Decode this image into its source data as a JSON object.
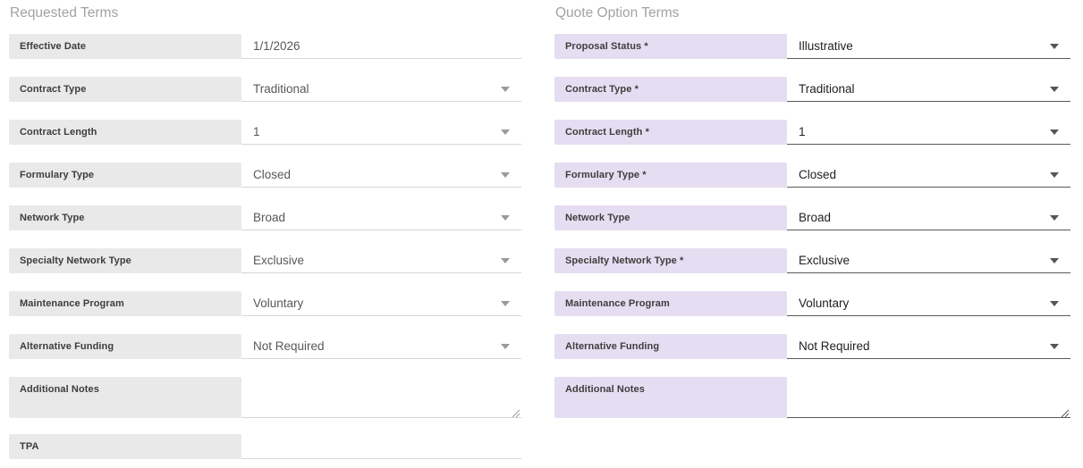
{
  "sections": {
    "left": {
      "title": "Requested Terms",
      "fields": [
        {
          "label": "Effective Date",
          "value": "1/1/2026",
          "type": "text"
        },
        {
          "label": "Contract Type",
          "value": "Traditional",
          "type": "select"
        },
        {
          "label": "Contract Length",
          "value": "1",
          "type": "select"
        },
        {
          "label": "Formulary Type",
          "value": "Closed",
          "type": "select"
        },
        {
          "label": "Network Type",
          "value": "Broad",
          "type": "select"
        },
        {
          "label": "Specialty Network Type",
          "value": "Exclusive",
          "type": "select"
        },
        {
          "label": "Maintenance Program",
          "value": "Voluntary",
          "type": "select"
        },
        {
          "label": "Alternative Funding",
          "value": "Not Required",
          "type": "select"
        },
        {
          "label": "Additional Notes",
          "value": "",
          "type": "textarea"
        },
        {
          "label": "TPA",
          "value": "",
          "type": "text"
        }
      ]
    },
    "right": {
      "title": "Quote Option Terms",
      "fields": [
        {
          "label": "Proposal Status *",
          "value": "Illustrative",
          "type": "select"
        },
        {
          "label": "Contract Type *",
          "value": "Traditional",
          "type": "select"
        },
        {
          "label": "Contract Length *",
          "value": "1",
          "type": "select"
        },
        {
          "label": "Formulary Type *",
          "value": "Closed",
          "type": "select"
        },
        {
          "label": "Network Type",
          "value": "Broad",
          "type": "select"
        },
        {
          "label": "Specialty Network Type *",
          "value": "Exclusive",
          "type": "select"
        },
        {
          "label": "Maintenance Program",
          "value": "Voluntary",
          "type": "select"
        },
        {
          "label": "Alternative Funding",
          "value": "Not Required",
          "type": "select"
        },
        {
          "label": "Additional Notes",
          "value": "",
          "type": "textarea"
        }
      ]
    }
  },
  "colors": {
    "left_label_bg": "#e9e9e9",
    "right_label_bg": "#e5ddf1",
    "left_value_text": "#585858",
    "right_value_text": "#1f1f1f",
    "left_underline": "#d6d6d6",
    "right_underline": "#5a5a5a",
    "section_title_text": "#a2a2a2",
    "label_text": "#3d3d3d"
  }
}
